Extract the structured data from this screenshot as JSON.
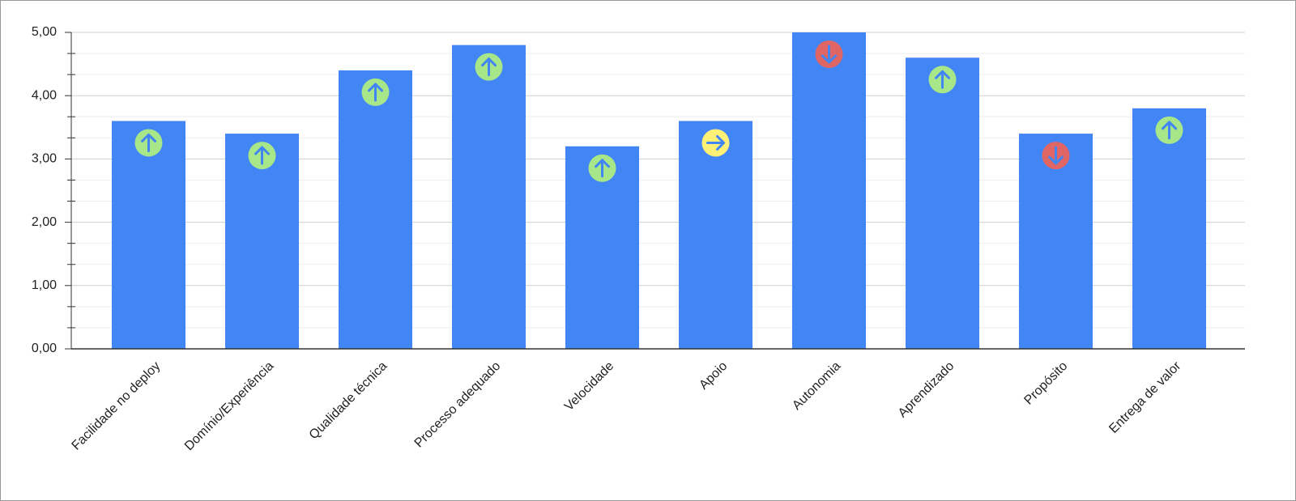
{
  "chart_data": {
    "type": "bar",
    "categories": [
      "Facilidade no deploy",
      "Domínio/Experiência",
      "Qualidade técnica",
      "Processo adequado",
      "Velocidade",
      "Apoio",
      "Autonomia",
      "Aprendizado",
      "Propósito",
      "Entrega de valor"
    ],
    "values": [
      3.6,
      3.4,
      4.4,
      4.8,
      3.2,
      3.6,
      5.0,
      4.6,
      3.4,
      3.8
    ],
    "color": "#4285f4",
    "ylim": [
      0,
      5
    ],
    "yticks": [
      {
        "value": 0,
        "label": "0,00"
      },
      {
        "value": 1,
        "label": "1,00"
      },
      {
        "value": 2,
        "label": "2,00"
      },
      {
        "value": 3,
        "label": "3,00"
      },
      {
        "value": 4,
        "label": "4,00"
      },
      {
        "value": 5,
        "label": "5,00"
      }
    ],
    "grid": true
  }
}
